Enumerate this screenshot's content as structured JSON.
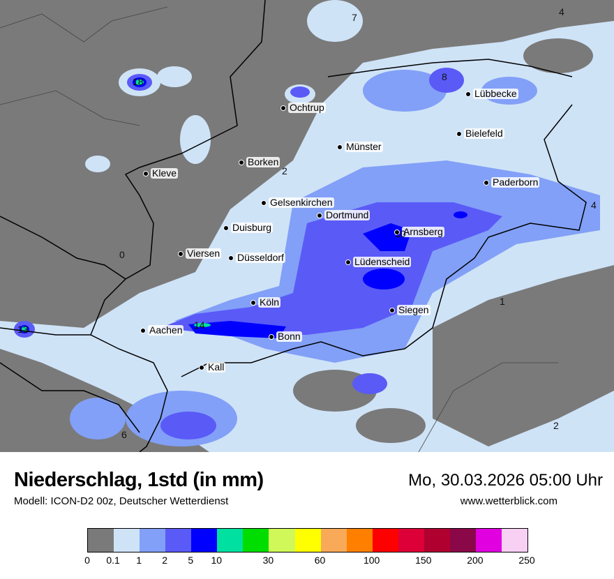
{
  "header": {
    "title": "Niederschlag, 1std (in mm)",
    "subtitle": "Modell: ICON-D2 00z, Deutscher Wetterdienst",
    "datetime": "Mo, 30.03.2026 05:00 Uhr",
    "website": "www.wetterblick.com"
  },
  "colors": {
    "background": "#7a7a7a",
    "0.1-1": "#cfe3f7",
    "1-2": "#82a0f7",
    "2-5": "#5a5af7",
    "5-10": "#0000ff",
    "10-20": "#00e0a0"
  },
  "legend": {
    "colors": [
      "#7a7a7a",
      "#cfe3f7",
      "#82a0f7",
      "#5a5af7",
      "#0000ff",
      "#00e0a0",
      "#00dd00",
      "#d0f858",
      "#ffff00",
      "#f8aa58",
      "#ff8000",
      "#ff0000",
      "#dd0038",
      "#b00030",
      "#8b0848",
      "#e000e0",
      "#f8d0f4"
    ],
    "ticks": [
      "0",
      "0.1",
      "1",
      "2",
      "5",
      "10",
      "30",
      "60",
      "100",
      "150",
      "200",
      "250"
    ]
  },
  "cities": [
    "Ochtrup",
    "Lübbecke",
    "Bielefeld",
    "Münster",
    "Borken",
    "Kleve",
    "Paderborn",
    "Gelsenkirchen",
    "Dortmund",
    "Duisburg",
    "Arnsberg",
    "Viersen",
    "Düsseldorf",
    "Lüdenscheid",
    "Köln",
    "Siegen",
    "Aachen",
    "Bonn",
    "Kall"
  ],
  "max_values": [
    "7",
    "4",
    "8",
    "18",
    "2",
    "0",
    "4",
    "10",
    "1",
    "14",
    "13",
    "6",
    "2"
  ]
}
